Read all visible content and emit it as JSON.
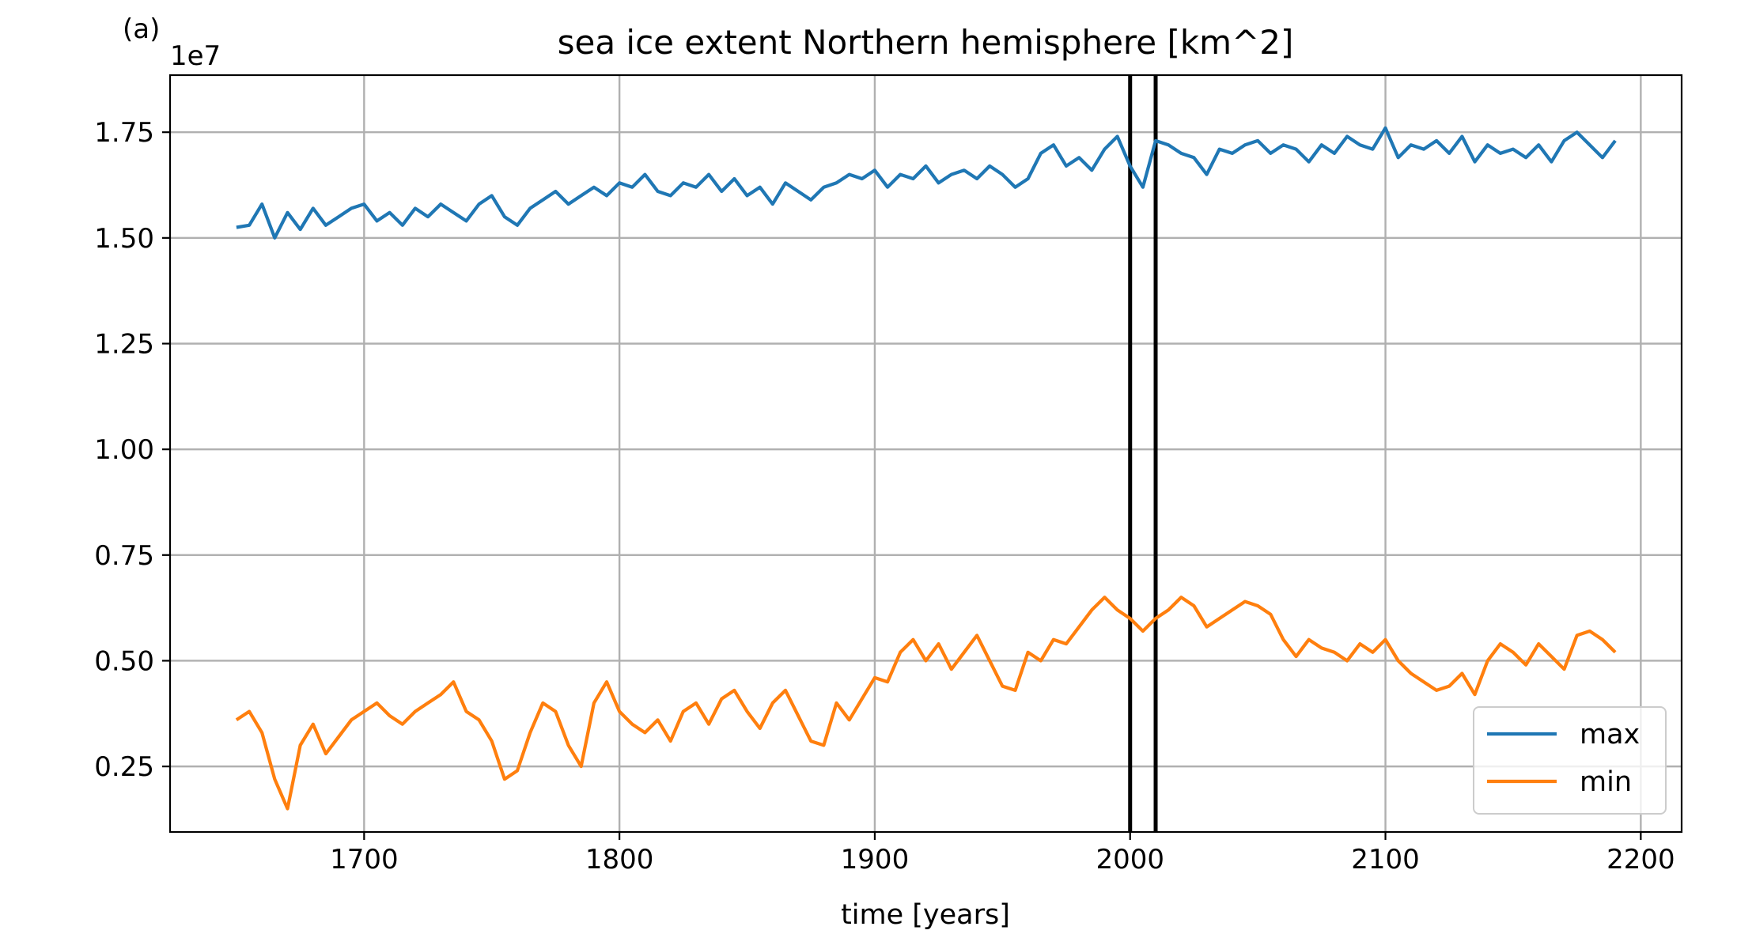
{
  "panel_label": "(a)",
  "chart_data": {
    "type": "line",
    "title": "sea ice extent Northern hemisphere [km^2]",
    "xlabel": "time [years]",
    "ylabel": "",
    "y_offset_label": "1e7",
    "y_scale_factor": 10000000,
    "xlim": [
      1624,
      2216
    ],
    "ylim": [
      0.095,
      1.885
    ],
    "x_ticks": [
      1700,
      1800,
      1900,
      2000,
      2100,
      2200
    ],
    "x_tick_labels": [
      "1700",
      "1800",
      "1900",
      "2000",
      "2100",
      "2200"
    ],
    "y_ticks": [
      0.25,
      0.5,
      0.75,
      1.0,
      1.25,
      1.5,
      1.75
    ],
    "y_tick_labels": [
      "0.25",
      "0.50",
      "0.75",
      "1.00",
      "1.25",
      "1.50",
      "1.75"
    ],
    "grid": true,
    "legend_position": "lower-right",
    "vertical_lines": [
      2000,
      2010
    ],
    "series": [
      {
        "name": "max",
        "color": "#1f77b4",
        "x": [
          1650,
          1655,
          1660,
          1665,
          1670,
          1675,
          1680,
          1685,
          1690,
          1695,
          1700,
          1705,
          1710,
          1715,
          1720,
          1725,
          1730,
          1735,
          1740,
          1745,
          1750,
          1755,
          1760,
          1765,
          1770,
          1775,
          1780,
          1785,
          1790,
          1795,
          1800,
          1805,
          1810,
          1815,
          1820,
          1825,
          1830,
          1835,
          1840,
          1845,
          1850,
          1855,
          1860,
          1865,
          1870,
          1875,
          1880,
          1885,
          1890,
          1895,
          1900,
          1905,
          1910,
          1915,
          1920,
          1925,
          1930,
          1935,
          1940,
          1945,
          1950,
          1955,
          1960,
          1965,
          1970,
          1975,
          1980,
          1985,
          1990,
          1995,
          2000,
          2005,
          2010,
          2015,
          2020,
          2025,
          2030,
          2035,
          2040,
          2045,
          2050,
          2055,
          2060,
          2065,
          2070,
          2075,
          2080,
          2085,
          2090,
          2095,
          2100,
          2105,
          2110,
          2115,
          2120,
          2125,
          2130,
          2135,
          2140,
          2145,
          2150,
          2155,
          2160,
          2165,
          2170,
          2175,
          2180,
          2185,
          2190
        ],
        "values": [
          1.525,
          1.53,
          1.58,
          1.5,
          1.56,
          1.52,
          1.57,
          1.53,
          1.55,
          1.57,
          1.58,
          1.54,
          1.56,
          1.53,
          1.57,
          1.55,
          1.58,
          1.56,
          1.54,
          1.58,
          1.6,
          1.55,
          1.53,
          1.57,
          1.59,
          1.61,
          1.58,
          1.6,
          1.62,
          1.6,
          1.63,
          1.62,
          1.65,
          1.61,
          1.6,
          1.63,
          1.62,
          1.65,
          1.61,
          1.64,
          1.6,
          1.62,
          1.58,
          1.63,
          1.61,
          1.59,
          1.62,
          1.63,
          1.65,
          1.64,
          1.66,
          1.62,
          1.65,
          1.64,
          1.67,
          1.63,
          1.65,
          1.66,
          1.64,
          1.67,
          1.65,
          1.62,
          1.64,
          1.7,
          1.72,
          1.67,
          1.69,
          1.66,
          1.71,
          1.74,
          1.67,
          1.62,
          1.73,
          1.72,
          1.7,
          1.69,
          1.65,
          1.71,
          1.7,
          1.72,
          1.73,
          1.7,
          1.72,
          1.71,
          1.68,
          1.72,
          1.7,
          1.74,
          1.72,
          1.71,
          1.76,
          1.69,
          1.72,
          1.71,
          1.73,
          1.7,
          1.74,
          1.68,
          1.72,
          1.7,
          1.71,
          1.69,
          1.72,
          1.68,
          1.73,
          1.75,
          1.72,
          1.69,
          1.73
        ]
      },
      {
        "name": "min",
        "color": "#ff7f0e",
        "x": [
          1650,
          1655,
          1660,
          1665,
          1670,
          1675,
          1680,
          1685,
          1690,
          1695,
          1700,
          1705,
          1710,
          1715,
          1720,
          1725,
          1730,
          1735,
          1740,
          1745,
          1750,
          1755,
          1760,
          1765,
          1770,
          1775,
          1780,
          1785,
          1790,
          1795,
          1800,
          1805,
          1810,
          1815,
          1820,
          1825,
          1830,
          1835,
          1840,
          1845,
          1850,
          1855,
          1860,
          1865,
          1870,
          1875,
          1880,
          1885,
          1890,
          1895,
          1900,
          1905,
          1910,
          1915,
          1920,
          1925,
          1930,
          1935,
          1940,
          1945,
          1950,
          1955,
          1960,
          1965,
          1970,
          1975,
          1980,
          1985,
          1990,
          1995,
          2000,
          2005,
          2010,
          2015,
          2020,
          2025,
          2030,
          2035,
          2040,
          2045,
          2050,
          2055,
          2060,
          2065,
          2070,
          2075,
          2080,
          2085,
          2090,
          2095,
          2100,
          2105,
          2110,
          2115,
          2120,
          2125,
          2130,
          2135,
          2140,
          2145,
          2150,
          2155,
          2160,
          2165,
          2170,
          2175,
          2180,
          2185,
          2190
        ],
        "values": [
          0.36,
          0.38,
          0.33,
          0.22,
          0.15,
          0.3,
          0.35,
          0.28,
          0.32,
          0.36,
          0.38,
          0.4,
          0.37,
          0.35,
          0.38,
          0.4,
          0.42,
          0.45,
          0.38,
          0.36,
          0.31,
          0.22,
          0.24,
          0.33,
          0.4,
          0.38,
          0.3,
          0.25,
          0.4,
          0.45,
          0.38,
          0.35,
          0.33,
          0.36,
          0.31,
          0.38,
          0.4,
          0.35,
          0.41,
          0.43,
          0.38,
          0.34,
          0.4,
          0.43,
          0.37,
          0.31,
          0.3,
          0.4,
          0.36,
          0.41,
          0.46,
          0.45,
          0.52,
          0.55,
          0.5,
          0.54,
          0.48,
          0.52,
          0.56,
          0.5,
          0.44,
          0.43,
          0.52,
          0.5,
          0.55,
          0.54,
          0.58,
          0.62,
          0.65,
          0.62,
          0.6,
          0.57,
          0.6,
          0.62,
          0.65,
          0.63,
          0.58,
          0.6,
          0.62,
          0.64,
          0.63,
          0.61,
          0.55,
          0.51,
          0.55,
          0.53,
          0.52,
          0.5,
          0.54,
          0.52,
          0.55,
          0.5,
          0.47,
          0.45,
          0.43,
          0.44,
          0.47,
          0.42,
          0.5,
          0.54,
          0.52,
          0.49,
          0.54,
          0.51,
          0.48,
          0.56,
          0.57,
          0.55,
          0.52
        ]
      }
    ]
  }
}
